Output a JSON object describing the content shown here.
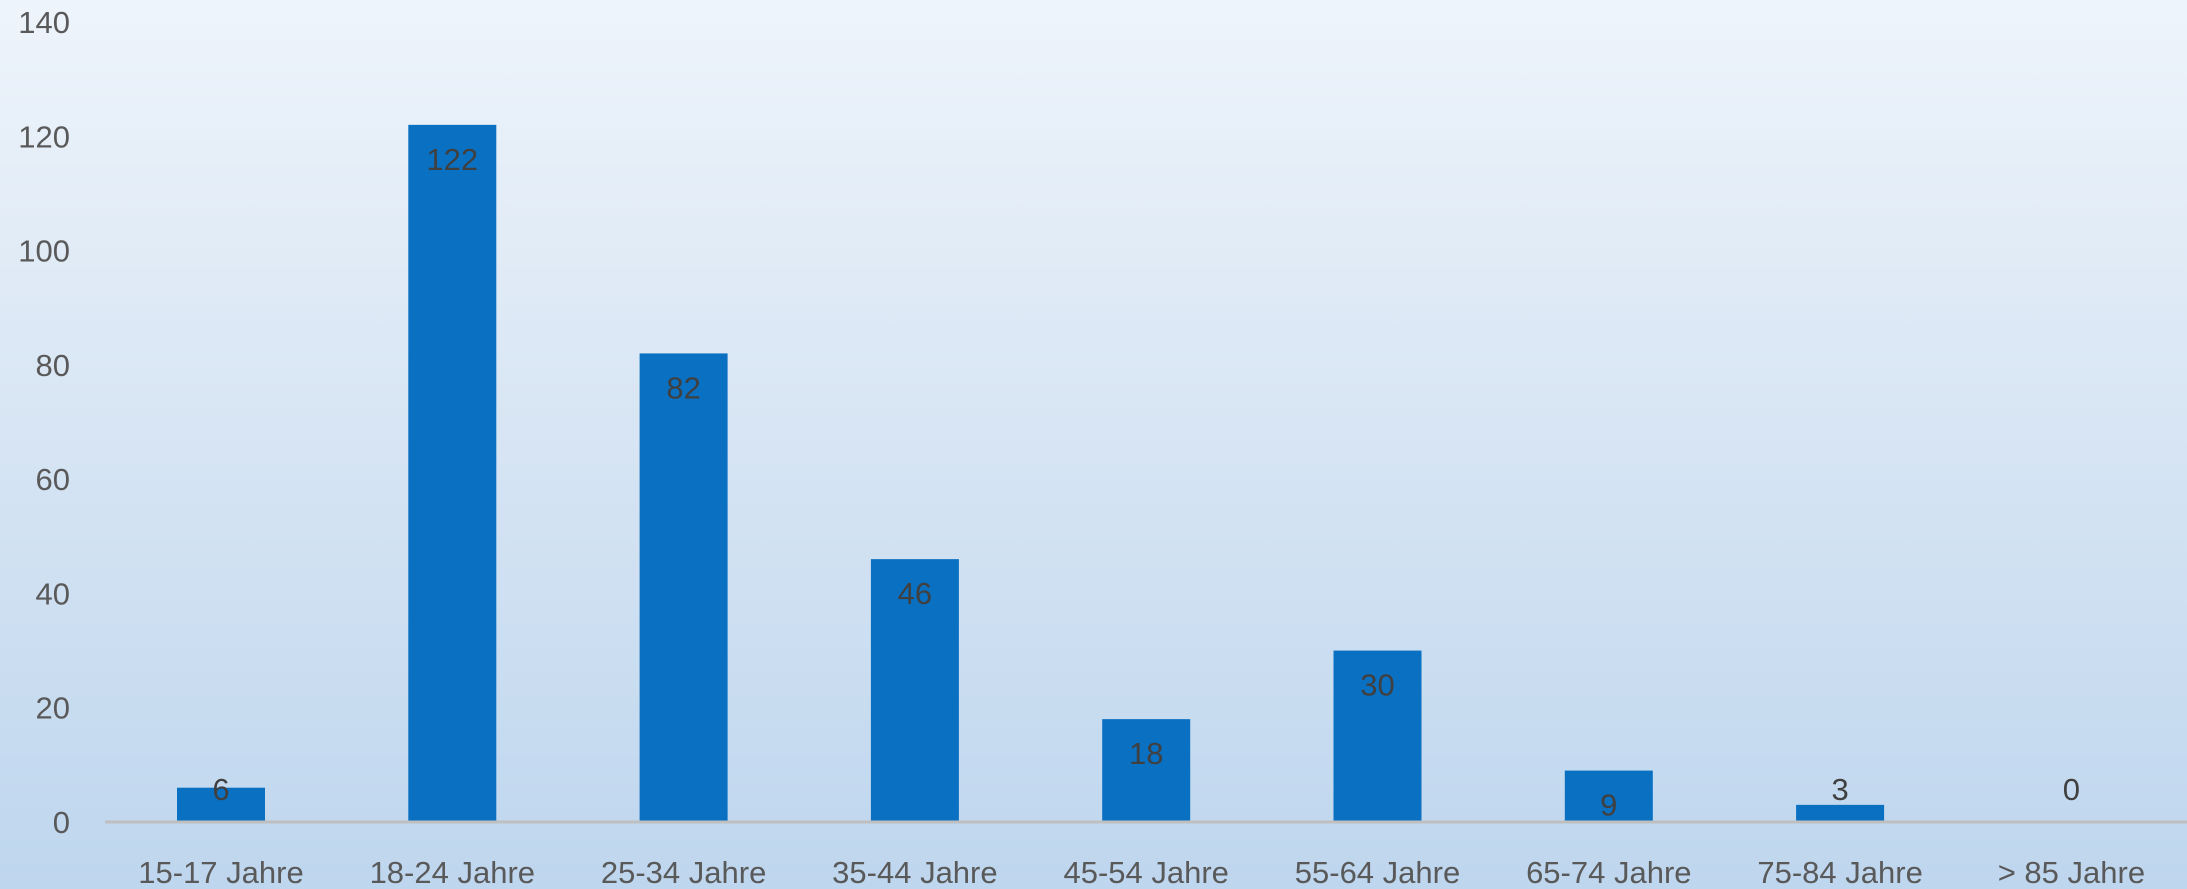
{
  "colors": {
    "bar": "#0a70c2",
    "axis_line": "#bfbfbf",
    "tick_text": "#595959",
    "label_text": "#404040"
  },
  "chart_data": {
    "type": "bar",
    "title": "",
    "xlabel": "",
    "ylabel": "",
    "categories": [
      "15-17 Jahre",
      "18-24 Jahre",
      "25-34 Jahre",
      "35-44 Jahre",
      "45-54 Jahre",
      "55-64 Jahre",
      "65-74 Jahre",
      "75-84 Jahre",
      "> 85 Jahre"
    ],
    "values": [
      6,
      122,
      82,
      46,
      18,
      30,
      9,
      3,
      0
    ],
    "ylim": [
      0,
      140
    ],
    "yticks": [
      0,
      20,
      40,
      60,
      80,
      100,
      120,
      140
    ],
    "grid": false,
    "legend": "none",
    "data_labels": true
  }
}
